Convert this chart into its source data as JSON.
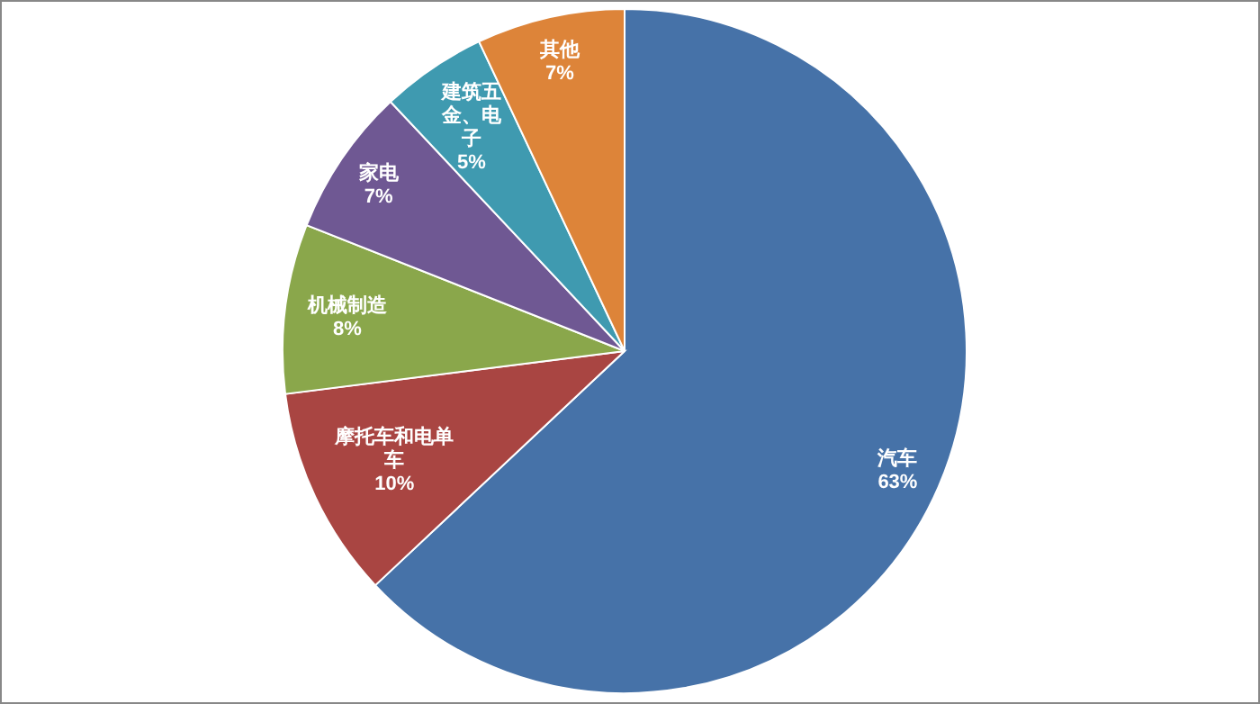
{
  "chart_data": {
    "type": "pie",
    "categories": [
      "汽车",
      "摩托车和电单车",
      "机械制造",
      "家电",
      "建筑五金、电子",
      "其他"
    ],
    "values": [
      63,
      10,
      8,
      7,
      5,
      7
    ],
    "colors": [
      "#4672a8",
      "#a94542",
      "#8aa74b",
      "#6f5893",
      "#3f9ab0",
      "#dd8439"
    ],
    "value_labels": [
      "63%",
      "10%",
      "8%",
      "7%",
      "5%",
      "7%"
    ]
  }
}
